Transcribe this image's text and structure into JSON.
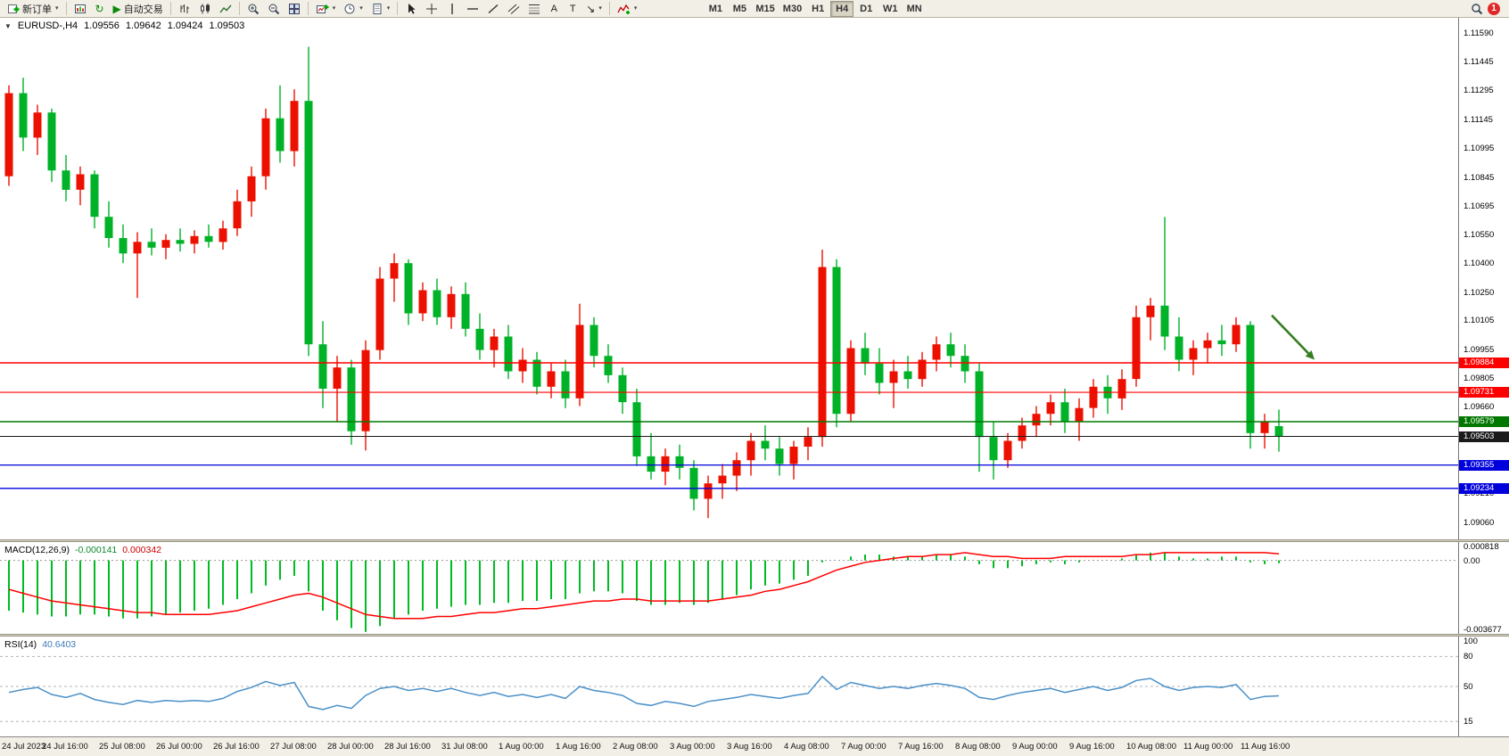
{
  "toolbar": {
    "new_order_label": "新订单",
    "auto_trading_label": "自动交易",
    "text_tool_label": "A",
    "label_tool_label": "T",
    "timeframes": [
      "M1",
      "M5",
      "M15",
      "M30",
      "H1",
      "H4",
      "D1",
      "W1",
      "MN"
    ],
    "active_timeframe": "H4",
    "notification_count": "1"
  },
  "icons": {
    "caret": "▾",
    "one_click": "▼",
    "play": "▶",
    "arrow_tool": "↘",
    "refresh": "↻"
  },
  "chart": {
    "symbol_label": "EURUSD-,H4",
    "ohlc": {
      "open": "1.09556",
      "high": "1.09642",
      "low": "1.09424",
      "close": "1.09503"
    },
    "price_axis": [
      "1.11590",
      "1.11445",
      "1.11295",
      "1.11145",
      "1.10995",
      "1.10845",
      "1.10695",
      "1.10550",
      "1.10400",
      "1.10250",
      "1.10105",
      "1.09955",
      "1.09805",
      "1.09660",
      "1.09510",
      "1.09360",
      "1.09210",
      "1.09060"
    ],
    "hlines": [
      {
        "price": 1.09884,
        "label": "1.09884",
        "color": "#ff0000",
        "width": 1.6
      },
      {
        "price": 1.09731,
        "label": "1.09731",
        "color": "#ff0000",
        "width": 1.1
      },
      {
        "price": 1.09579,
        "label": "1.09579",
        "color": "#007800",
        "width": 1.4
      },
      {
        "price": 1.09503,
        "label": "1.09503",
        "color": "#1a1a1a",
        "width": 1.1
      },
      {
        "price": 1.09355,
        "label": "1.09355",
        "color": "#0000dd",
        "width": 1.3
      },
      {
        "price": 1.09234,
        "label": "1.09234",
        "color": "#0000dd",
        "width": 1.3
      }
    ],
    "arrow": {
      "from_candle": 88.5,
      "from_price": 1.1013,
      "to_candle": 91.5,
      "to_price": 1.099,
      "color": "#377d22"
    }
  },
  "chart_data": {
    "type": "candlestick",
    "title": "EURUSD- H4 with MACD(12,26,9) and RSI(14)",
    "axis": {
      "price_max": 1.1167,
      "price_min": 1.0897
    },
    "candles": [
      [
        1.1085,
        1.1132,
        1.108,
        1.1128
      ],
      [
        1.1128,
        1.1136,
        1.1098,
        1.1105
      ],
      [
        1.1105,
        1.1122,
        1.1096,
        1.1118
      ],
      [
        1.1118,
        1.112,
        1.1082,
        1.1088
      ],
      [
        1.1088,
        1.1096,
        1.1072,
        1.1078
      ],
      [
        1.1078,
        1.109,
        1.107,
        1.1086
      ],
      [
        1.1086,
        1.1088,
        1.1058,
        1.1064
      ],
      [
        1.1064,
        1.1072,
        1.1048,
        1.1053
      ],
      [
        1.1053,
        1.106,
        1.104,
        1.1045
      ],
      [
        1.1045,
        1.1056,
        1.1022,
        1.1051
      ],
      [
        1.1051,
        1.1058,
        1.1044,
        1.1048
      ],
      [
        1.1048,
        1.1055,
        1.1042,
        1.1052
      ],
      [
        1.1052,
        1.1058,
        1.1046,
        1.105
      ],
      [
        1.105,
        1.1057,
        1.1045,
        1.1054
      ],
      [
        1.1054,
        1.106,
        1.1048,
        1.1051
      ],
      [
        1.1051,
        1.1062,
        1.1047,
        1.1058
      ],
      [
        1.1058,
        1.1078,
        1.1054,
        1.1072
      ],
      [
        1.1072,
        1.109,
        1.1064,
        1.1085
      ],
      [
        1.1085,
        1.112,
        1.1078,
        1.1115
      ],
      [
        1.1115,
        1.1132,
        1.1092,
        1.1098
      ],
      [
        1.1098,
        1.113,
        1.109,
        1.1124
      ],
      [
        1.1124,
        1.1152,
        1.0992,
        1.0998
      ],
      [
        1.0998,
        1.101,
        1.0965,
        1.0975
      ],
      [
        1.0975,
        1.0992,
        1.0958,
        1.0986
      ],
      [
        1.0986,
        1.099,
        1.0946,
        1.0953
      ],
      [
        1.0953,
        1.1,
        1.0943,
        1.0995
      ],
      [
        1.0995,
        1.1038,
        1.099,
        1.1032
      ],
      [
        1.1032,
        1.1045,
        1.102,
        1.104
      ],
      [
        1.104,
        1.1042,
        1.1008,
        1.1014
      ],
      [
        1.1014,
        1.103,
        1.101,
        1.1026
      ],
      [
        1.1026,
        1.1032,
        1.1008,
        1.1012
      ],
      [
        1.1012,
        1.1028,
        1.1006,
        1.1024
      ],
      [
        1.1024,
        1.103,
        1.1002,
        1.1006
      ],
      [
        1.1006,
        1.1014,
        1.099,
        1.0995
      ],
      [
        1.0995,
        1.1006,
        1.0986,
        1.1002
      ],
      [
        1.1002,
        1.1008,
        1.098,
        1.0984
      ],
      [
        1.0984,
        1.0996,
        1.0978,
        1.099
      ],
      [
        1.099,
        1.0994,
        1.0972,
        1.0976
      ],
      [
        1.0976,
        1.0988,
        1.097,
        1.0984
      ],
      [
        1.0984,
        1.099,
        1.0965,
        1.097
      ],
      [
        1.097,
        1.1019,
        1.0966,
        1.1008
      ],
      [
        1.1008,
        1.1012,
        1.0986,
        1.0992
      ],
      [
        1.0992,
        1.0998,
        1.0978,
        1.0982
      ],
      [
        1.0982,
        1.0986,
        1.0962,
        1.0968
      ],
      [
        1.0968,
        1.0975,
        1.0935,
        1.094
      ],
      [
        1.094,
        1.0952,
        1.0928,
        1.0932
      ],
      [
        1.0932,
        1.0944,
        1.0925,
        1.094
      ],
      [
        1.094,
        1.0946,
        1.0928,
        1.0934
      ],
      [
        1.0934,
        1.0938,
        1.0912,
        1.0918
      ],
      [
        1.0918,
        1.093,
        1.0908,
        1.0926
      ],
      [
        1.0926,
        1.0936,
        1.0918,
        1.093
      ],
      [
        1.093,
        1.0942,
        1.0922,
        1.0938
      ],
      [
        1.0938,
        1.0952,
        1.093,
        1.0948
      ],
      [
        1.0948,
        1.0956,
        1.0938,
        1.0944
      ],
      [
        1.0944,
        1.095,
        1.093,
        1.0936
      ],
      [
        1.0936,
        1.0948,
        1.0928,
        1.0945
      ],
      [
        1.0945,
        1.0955,
        1.0938,
        1.095
      ],
      [
        1.095,
        1.1047,
        1.0945,
        1.1038
      ],
      [
        1.1038,
        1.1042,
        1.0955,
        1.0962
      ],
      [
        1.0962,
        1.1,
        1.0958,
        1.0996
      ],
      [
        1.0996,
        1.1004,
        1.0982,
        1.0988
      ],
      [
        1.0988,
        1.0996,
        1.0972,
        1.0978
      ],
      [
        1.0978,
        1.099,
        1.0965,
        1.0984
      ],
      [
        1.0984,
        1.0992,
        1.0975,
        1.098
      ],
      [
        1.098,
        1.0994,
        1.0976,
        1.099
      ],
      [
        1.099,
        1.1002,
        1.0984,
        1.0998
      ],
      [
        1.0998,
        1.1004,
        1.0986,
        1.0992
      ],
      [
        1.0992,
        1.0998,
        1.0978,
        1.0984
      ],
      [
        1.0984,
        1.0988,
        1.0932,
        1.095
      ],
      [
        1.095,
        1.0958,
        1.0928,
        1.0938
      ],
      [
        1.0938,
        1.0952,
        1.0934,
        1.0948
      ],
      [
        1.0948,
        1.096,
        1.0944,
        1.0956
      ],
      [
        1.0956,
        1.0966,
        1.095,
        1.0962
      ],
      [
        1.0962,
        1.0972,
        1.0956,
        1.0968
      ],
      [
        1.0968,
        1.0975,
        1.0952,
        1.0958
      ],
      [
        1.0958,
        1.097,
        1.0948,
        1.0965
      ],
      [
        1.0965,
        1.098,
        1.096,
        1.0976
      ],
      [
        1.0976,
        1.0982,
        1.0962,
        1.097
      ],
      [
        1.097,
        1.0985,
        1.0964,
        1.098
      ],
      [
        1.098,
        1.1018,
        1.0976,
        1.1012
      ],
      [
        1.1012,
        1.1022,
        1.1,
        1.1018
      ],
      [
        1.1018,
        1.1064,
        1.0995,
        1.1002
      ],
      [
        1.1002,
        1.1012,
        1.0984,
        1.099
      ],
      [
        1.099,
        1.1,
        1.0982,
        1.0996
      ],
      [
        1.0996,
        1.1004,
        1.0988,
        1.1
      ],
      [
        1.1,
        1.1008,
        1.0992,
        1.0998
      ],
      [
        1.0998,
        1.1012,
        1.0994,
        1.1008
      ],
      [
        1.1008,
        1.101,
        1.0944,
        1.0952
      ],
      [
        1.0952,
        1.0962,
        1.0944,
        1.0958
      ],
      [
        1.09556,
        1.09642,
        1.09424,
        1.09503
      ]
    ],
    "macd": {
      "histogram": [
        -0.0026,
        -0.0027,
        -0.0028,
        -0.0029,
        -0.0029,
        -0.0028,
        -0.0028,
        -0.0029,
        -0.003,
        -0.003,
        -0.0029,
        -0.0028,
        -0.0027,
        -0.0026,
        -0.0025,
        -0.0023,
        -0.002,
        -0.0017,
        -0.0013,
        -0.001,
        -0.0008,
        -0.0016,
        -0.0026,
        -0.0031,
        -0.0035,
        -0.0037,
        -0.0034,
        -0.003,
        -0.0028,
        -0.0026,
        -0.0025,
        -0.0024,
        -0.0023,
        -0.0023,
        -0.0022,
        -0.0022,
        -0.0021,
        -0.0021,
        -0.002,
        -0.002,
        -0.0017,
        -0.0016,
        -0.0016,
        -0.0017,
        -0.0021,
        -0.0023,
        -0.0023,
        -0.0022,
        -0.0023,
        -0.0022,
        -0.002,
        -0.0018,
        -0.0015,
        -0.0013,
        -0.0012,
        -0.001,
        -0.0008,
        -0.0001,
        0.0,
        0.0002,
        0.0003,
        0.0003,
        0.0002,
        0.0002,
        0.0002,
        0.0003,
        0.0003,
        0.0002,
        -0.0002,
        -0.0004,
        -0.0004,
        -0.0003,
        -0.0002,
        -0.0001,
        -0.0002,
        -0.0001,
        0.0,
        0.0,
        0.0001,
        0.0003,
        0.0004,
        0.0004,
        0.0002,
        0.0001,
        0.0001,
        0.0002,
        0.0002,
        -0.0001,
        -0.0002,
        -0.000141
      ],
      "signal": [
        -0.0015,
        -0.0017,
        -0.0019,
        -0.0021,
        -0.0022,
        -0.0023,
        -0.0024,
        -0.0025,
        -0.0026,
        -0.0027,
        -0.0027,
        -0.0028,
        -0.0028,
        -0.0028,
        -0.0028,
        -0.0027,
        -0.0026,
        -0.0024,
        -0.0022,
        -0.002,
        -0.0018,
        -0.0017,
        -0.0019,
        -0.0022,
        -0.0025,
        -0.0028,
        -0.0029,
        -0.003,
        -0.003,
        -0.003,
        -0.0029,
        -0.0029,
        -0.0028,
        -0.0027,
        -0.0027,
        -0.0026,
        -0.0025,
        -0.0025,
        -0.0024,
        -0.0023,
        -0.0022,
        -0.0021,
        -0.0021,
        -0.002,
        -0.002,
        -0.0021,
        -0.0021,
        -0.0021,
        -0.0021,
        -0.0021,
        -0.002,
        -0.0019,
        -0.0018,
        -0.0016,
        -0.0015,
        -0.0013,
        -0.0011,
        -0.0008,
        -0.0005,
        -0.0003,
        -0.0001,
        0.0,
        0.0001,
        0.0002,
        0.0002,
        0.0003,
        0.0003,
        0.0004,
        0.0003,
        0.0002,
        0.0002,
        0.0001,
        0.0001,
        0.0001,
        0.0002,
        0.0002,
        0.0002,
        0.0002,
        0.0002,
        0.0003,
        0.0003,
        0.0004,
        0.0004,
        0.0004,
        0.0004,
        0.0004,
        0.0004,
        0.0004,
        0.0004,
        0.000342
      ]
    },
    "rsi": {
      "values": [
        44,
        47,
        49,
        42,
        39,
        43,
        37,
        34,
        32,
        36,
        34,
        36,
        35,
        36,
        35,
        38,
        45,
        49,
        55,
        51,
        54,
        30,
        27,
        31,
        28,
        41,
        48,
        50,
        46,
        48,
        45,
        48,
        44,
        41,
        44,
        40,
        42,
        39,
        42,
        38,
        50,
        46,
        44,
        41,
        33,
        31,
        35,
        33,
        30,
        35,
        37,
        39,
        42,
        40,
        38,
        41,
        43,
        60,
        47,
        54,
        51,
        48,
        50,
        48,
        51,
        53,
        51,
        48,
        39,
        37,
        41,
        44,
        46,
        48,
        44,
        47,
        50,
        46,
        49,
        56,
        58,
        50,
        46,
        49,
        50,
        49,
        52,
        37,
        40,
        40.64
      ]
    }
  },
  "macd_panel": {
    "label": "MACD(12,26,9)",
    "value_main": "-0.000141",
    "value_signal": "0.000342",
    "axis": [
      {
        "label": "0.000818",
        "value": 0.000818
      },
      {
        "label": "0.00",
        "value": 0
      },
      {
        "label": "-0.003677",
        "value": -0.003677
      }
    ],
    "vmax": 0.00095,
    "vmin": -0.0038
  },
  "rsi_panel": {
    "label": "RSI(14)",
    "value": "40.6403",
    "levels": [
      {
        "label": "100",
        "value": 100
      },
      {
        "label": "80",
        "value": 80
      },
      {
        "label": "50",
        "value": 50
      },
      {
        "label": "15",
        "value": 15
      }
    ]
  },
  "time_axis": [
    "24 Jul 2023",
    "24 Jul 16:00",
    "25 Jul 08:00",
    "26 Jul 00:00",
    "26 Jul 16:00",
    "27 Jul 08:00",
    "28 Jul 00:00",
    "28 Jul 16:00",
    "31 Jul 08:00",
    "1 Aug 00:00",
    "1 Aug 16:00",
    "2 Aug 08:00",
    "3 Aug 00:00",
    "3 Aug 16:00",
    "4 Aug 08:00",
    "7 Aug 00:00",
    "7 Aug 16:00",
    "8 Aug 08:00",
    "9 Aug 00:00",
    "9 Aug 16:00",
    "10 Aug 08:00",
    "11 Aug 00:00",
    "11 Aug 16:00"
  ],
  "colors": {
    "bull": "#ec1000",
    "bear": "#00b227",
    "macd_hist": "#00bb22",
    "macd_signal": "#ff0000",
    "rsi_line": "#4a90c8"
  }
}
